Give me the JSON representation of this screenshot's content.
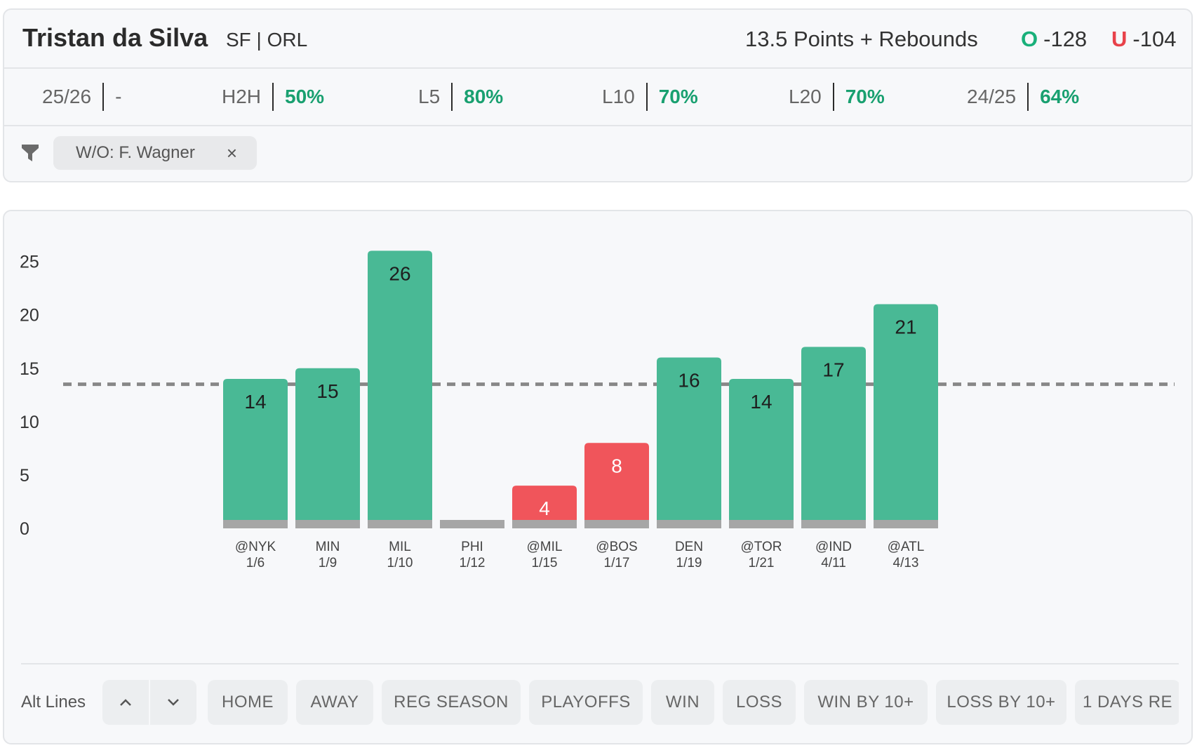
{
  "player": {
    "name": "Tristan da Silva",
    "team": "SF | ORL",
    "prop": "13.5 Points + Rebounds",
    "over_letter": "O",
    "over_odds": "-128",
    "under_letter": "U",
    "under_odds": "-104"
  },
  "stats": [
    {
      "label": "25/26",
      "value": "-"
    },
    {
      "label": "H2H",
      "value": "50%"
    },
    {
      "label": "L5",
      "value": "80%"
    },
    {
      "label": "L10",
      "value": "70%"
    },
    {
      "label": "L20",
      "value": "70%"
    },
    {
      "label": "24/25",
      "value": "64%"
    }
  ],
  "filter": {
    "chip_label": "W/O: F. Wagner",
    "chip_close": "×"
  },
  "colors": {
    "over": "#49b995",
    "under": "#f0555b",
    "base": "#a6a6a6",
    "line": "#888888"
  },
  "chart_data": {
    "type": "bar",
    "categories": [
      "@NYK",
      "MIN",
      "MIL",
      "PHI",
      "@MIL",
      "@BOS",
      "DEN",
      "@TOR",
      "@IND",
      "@ATL"
    ],
    "dates": [
      "1/6",
      "1/9",
      "1/10",
      "1/12",
      "1/15",
      "1/17",
      "1/19",
      "1/21",
      "4/11",
      "4/13"
    ],
    "values": [
      14,
      15,
      26,
      0,
      4,
      8,
      16,
      14,
      17,
      21
    ],
    "value_labels": [
      "14",
      "15",
      "26",
      "",
      "4",
      "8",
      "16",
      "14",
      "17",
      "21"
    ],
    "line": 13.5,
    "ylim": [
      0,
      25
    ],
    "yticks": [
      0,
      5,
      10,
      15,
      20,
      25
    ],
    "title": "",
    "xlabel": "",
    "ylabel": ""
  },
  "controls": {
    "alt_label": "Alt Lines",
    "buttons": [
      "HOME",
      "AWAY",
      "REG SEASON",
      "PLAYOFFS",
      "WIN",
      "LOSS",
      "WIN BY 10+",
      "LOSS BY 10+",
      "1 DAYS RE"
    ]
  }
}
